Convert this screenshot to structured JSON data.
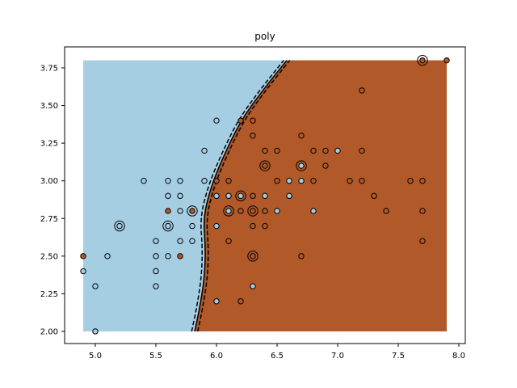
{
  "chart_data": {
    "type": "scatter",
    "title": "poly",
    "xlabel": "",
    "ylabel": "",
    "xlim": [
      4.76,
      8.04
    ],
    "ylim": [
      1.92,
      3.88
    ],
    "x_ticks": [
      "5.0",
      "5.5",
      "6.0",
      "6.5",
      "7.0",
      "7.5",
      "8.0"
    ],
    "y_ticks": [
      "2.00",
      "2.25",
      "2.50",
      "2.75",
      "3.00",
      "3.25",
      "3.50",
      "3.75"
    ],
    "grid": false,
    "legend": null,
    "colors": {
      "class_0": "#a6cee3",
      "class_1": "#b15928"
    },
    "decision_region": {
      "x_range": [
        4.9,
        7.9
      ],
      "y_range": [
        2.0,
        3.8
      ],
      "boundary": [
        [
          5.82,
          2.0
        ],
        [
          5.86,
          2.15
        ],
        [
          5.9,
          2.35
        ],
        [
          5.91,
          2.55
        ],
        [
          5.89,
          2.75
        ],
        [
          5.95,
          2.95
        ],
        [
          6.05,
          3.15
        ],
        [
          6.2,
          3.4
        ],
        [
          6.38,
          3.6
        ],
        [
          6.58,
          3.8
        ]
      ],
      "margin_offset": 0.025
    },
    "points": [
      {
        "x": 4.9,
        "y": 2.5,
        "cls": 1,
        "sv": false
      },
      {
        "x": 4.9,
        "y": 2.4,
        "cls": 0,
        "sv": false
      },
      {
        "x": 5.0,
        "y": 2.3,
        "cls": 0,
        "sv": false
      },
      {
        "x": 5.0,
        "y": 2.0,
        "cls": 0,
        "sv": false
      },
      {
        "x": 5.1,
        "y": 2.5,
        "cls": 0,
        "sv": false
      },
      {
        "x": 5.2,
        "y": 2.7,
        "cls": 0,
        "sv": true
      },
      {
        "x": 5.4,
        "y": 3.0,
        "cls": 0,
        "sv": false
      },
      {
        "x": 5.5,
        "y": 2.6,
        "cls": 0,
        "sv": false
      },
      {
        "x": 5.5,
        "y": 2.5,
        "cls": 0,
        "sv": false
      },
      {
        "x": 5.5,
        "y": 2.4,
        "cls": 0,
        "sv": false
      },
      {
        "x": 5.5,
        "y": 2.3,
        "cls": 0,
        "sv": false
      },
      {
        "x": 5.6,
        "y": 3.0,
        "cls": 0,
        "sv": false
      },
      {
        "x": 5.6,
        "y": 2.9,
        "cls": 0,
        "sv": false
      },
      {
        "x": 5.6,
        "y": 2.8,
        "cls": 1,
        "sv": false
      },
      {
        "x": 5.6,
        "y": 2.7,
        "cls": 0,
        "sv": true
      },
      {
        "x": 5.6,
        "y": 2.5,
        "cls": 0,
        "sv": false
      },
      {
        "x": 5.7,
        "y": 3.0,
        "cls": 0,
        "sv": false
      },
      {
        "x": 5.7,
        "y": 2.9,
        "cls": 0,
        "sv": false
      },
      {
        "x": 5.7,
        "y": 2.8,
        "cls": 0,
        "sv": false
      },
      {
        "x": 5.7,
        "y": 2.6,
        "cls": 0,
        "sv": false
      },
      {
        "x": 5.7,
        "y": 2.5,
        "cls": 1,
        "sv": false
      },
      {
        "x": 5.8,
        "y": 2.8,
        "cls": 1,
        "sv": true
      },
      {
        "x": 5.8,
        "y": 2.7,
        "cls": 0,
        "sv": false
      },
      {
        "x": 5.8,
        "y": 2.6,
        "cls": 0,
        "sv": false
      },
      {
        "x": 5.9,
        "y": 3.2,
        "cls": 0,
        "sv": false
      },
      {
        "x": 5.9,
        "y": 3.0,
        "cls": 0,
        "sv": false
      },
      {
        "x": 6.0,
        "y": 3.4,
        "cls": 0,
        "sv": false
      },
      {
        "x": 6.0,
        "y": 3.0,
        "cls": 1,
        "sv": false
      },
      {
        "x": 6.0,
        "y": 2.9,
        "cls": 0,
        "sv": false
      },
      {
        "x": 6.0,
        "y": 2.7,
        "cls": 0,
        "sv": false
      },
      {
        "x": 6.0,
        "y": 2.2,
        "cls": 0,
        "sv": false
      },
      {
        "x": 6.1,
        "y": 3.0,
        "cls": 1,
        "sv": false
      },
      {
        "x": 6.1,
        "y": 2.9,
        "cls": 0,
        "sv": false
      },
      {
        "x": 6.1,
        "y": 2.8,
        "cls": 0,
        "sv": true
      },
      {
        "x": 6.1,
        "y": 2.6,
        "cls": 1,
        "sv": false
      },
      {
        "x": 6.2,
        "y": 3.4,
        "cls": 1,
        "sv": false
      },
      {
        "x": 6.2,
        "y": 2.9,
        "cls": 0,
        "sv": true
      },
      {
        "x": 6.2,
        "y": 2.8,
        "cls": 1,
        "sv": false
      },
      {
        "x": 6.2,
        "y": 2.2,
        "cls": 1,
        "sv": false
      },
      {
        "x": 6.3,
        "y": 3.4,
        "cls": 1,
        "sv": false
      },
      {
        "x": 6.3,
        "y": 3.3,
        "cls": 1,
        "sv": false
      },
      {
        "x": 6.3,
        "y": 2.9,
        "cls": 1,
        "sv": false
      },
      {
        "x": 6.3,
        "y": 2.8,
        "cls": 1,
        "sv": true
      },
      {
        "x": 6.3,
        "y": 2.7,
        "cls": 1,
        "sv": false
      },
      {
        "x": 6.3,
        "y": 2.5,
        "cls": 1,
        "sv": true
      },
      {
        "x": 6.3,
        "y": 2.3,
        "cls": 0,
        "sv": false
      },
      {
        "x": 6.4,
        "y": 3.2,
        "cls": 1,
        "sv": false
      },
      {
        "x": 6.4,
        "y": 3.1,
        "cls": 1,
        "sv": true
      },
      {
        "x": 6.4,
        "y": 2.9,
        "cls": 0,
        "sv": false
      },
      {
        "x": 6.4,
        "y": 2.8,
        "cls": 1,
        "sv": false
      },
      {
        "x": 6.4,
        "y": 2.7,
        "cls": 1,
        "sv": false
      },
      {
        "x": 6.5,
        "y": 3.2,
        "cls": 1,
        "sv": false
      },
      {
        "x": 6.5,
        "y": 3.0,
        "cls": 1,
        "sv": false
      },
      {
        "x": 6.5,
        "y": 2.8,
        "cls": 0,
        "sv": false
      },
      {
        "x": 6.6,
        "y": 3.0,
        "cls": 0,
        "sv": false
      },
      {
        "x": 6.6,
        "y": 2.9,
        "cls": 0,
        "sv": false
      },
      {
        "x": 6.7,
        "y": 3.3,
        "cls": 1,
        "sv": false
      },
      {
        "x": 6.7,
        "y": 3.1,
        "cls": 0,
        "sv": true
      },
      {
        "x": 6.7,
        "y": 3.0,
        "cls": 0,
        "sv": false
      },
      {
        "x": 6.7,
        "y": 2.5,
        "cls": 1,
        "sv": false
      },
      {
        "x": 6.8,
        "y": 3.2,
        "cls": 1,
        "sv": false
      },
      {
        "x": 6.8,
        "y": 3.0,
        "cls": 1,
        "sv": false
      },
      {
        "x": 6.8,
        "y": 2.8,
        "cls": 0,
        "sv": false
      },
      {
        "x": 6.9,
        "y": 3.2,
        "cls": 1,
        "sv": false
      },
      {
        "x": 6.9,
        "y": 3.1,
        "cls": 1,
        "sv": false
      },
      {
        "x": 7.0,
        "y": 3.2,
        "cls": 0,
        "sv": false
      },
      {
        "x": 7.1,
        "y": 3.0,
        "cls": 1,
        "sv": false
      },
      {
        "x": 7.2,
        "y": 3.6,
        "cls": 1,
        "sv": false
      },
      {
        "x": 7.2,
        "y": 3.2,
        "cls": 1,
        "sv": false
      },
      {
        "x": 7.2,
        "y": 3.0,
        "cls": 1,
        "sv": false
      },
      {
        "x": 7.3,
        "y": 2.9,
        "cls": 1,
        "sv": false
      },
      {
        "x": 7.4,
        "y": 2.8,
        "cls": 1,
        "sv": false
      },
      {
        "x": 7.6,
        "y": 3.0,
        "cls": 1,
        "sv": false
      },
      {
        "x": 7.7,
        "y": 3.8,
        "cls": 1,
        "sv": true
      },
      {
        "x": 7.7,
        "y": 3.0,
        "cls": 1,
        "sv": false
      },
      {
        "x": 7.7,
        "y": 2.8,
        "cls": 1,
        "sv": false
      },
      {
        "x": 7.7,
        "y": 2.6,
        "cls": 1,
        "sv": false
      },
      {
        "x": 7.9,
        "y": 3.8,
        "cls": 1,
        "sv": false
      }
    ]
  }
}
